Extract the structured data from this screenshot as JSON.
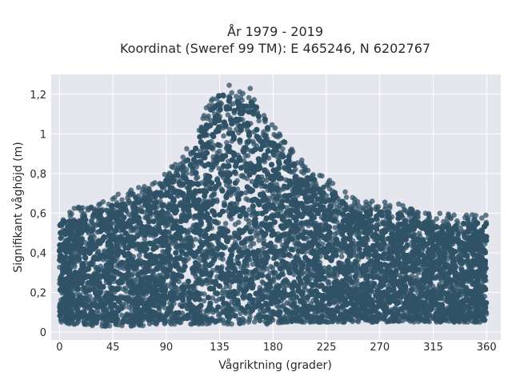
{
  "chart_data": {
    "type": "scatter",
    "title": "År 1979 - 2019",
    "subtitle": "Koordinat (Sweref 99 TM): E 465246, N 6202767",
    "xlabel": "Vågriktning (grader)",
    "ylabel": "Signifikant våghöjd (m)",
    "xlim": [
      -7,
      372
    ],
    "ylim": [
      -0.04,
      1.3
    ],
    "x_ticks": [
      0,
      45,
      90,
      135,
      180,
      225,
      270,
      315,
      360
    ],
    "x_tick_labels": [
      "0",
      "45",
      "90",
      "135",
      "180",
      "225",
      "270",
      "315",
      "360"
    ],
    "y_ticks": [
      0,
      0.2,
      0.4,
      0.6,
      0.8,
      1.0,
      1.2
    ],
    "y_tick_labels": [
      "0",
      "0,2",
      "0,4",
      "0,6",
      "0,8",
      "1",
      "1,2"
    ],
    "grid": true,
    "legend": false,
    "marker_color": "#2f5266",
    "background_color": "#e5e6ee",
    "series": [
      {
        "x": [
          0,
          10,
          20,
          30,
          40,
          50,
          60,
          70,
          80,
          90,
          100,
          110,
          120,
          130,
          135,
          140,
          150,
          160,
          170,
          180,
          190,
          200,
          210,
          220,
          230,
          240,
          250,
          260,
          270,
          280,
          290,
          300,
          310,
          320,
          330,
          340,
          350,
          360
        ],
        "y_min": [
          0.05,
          0.04,
          0.04,
          0.03,
          0.03,
          0.03,
          0.03,
          0.03,
          0.04,
          0.04,
          0.04,
          0.04,
          0.04,
          0.04,
          0.04,
          0.04,
          0.04,
          0.04,
          0.04,
          0.04,
          0.05,
          0.05,
          0.05,
          0.05,
          0.05,
          0.05,
          0.05,
          0.05,
          0.05,
          0.05,
          0.05,
          0.05,
          0.05,
          0.05,
          0.05,
          0.05,
          0.05,
          0.05
        ],
        "y_max": [
          0.6,
          0.62,
          0.64,
          0.66,
          0.68,
          0.7,
          0.72,
          0.74,
          0.76,
          0.82,
          0.86,
          0.95,
          1.08,
          1.22,
          1.25,
          1.25,
          1.24,
          1.24,
          1.16,
          1.05,
          0.96,
          0.9,
          0.84,
          0.8,
          0.76,
          0.71,
          0.68,
          0.66,
          0.66,
          0.66,
          0.64,
          0.62,
          0.6,
          0.6,
          0.6,
          0.6,
          0.6,
          0.6
        ]
      }
    ]
  }
}
